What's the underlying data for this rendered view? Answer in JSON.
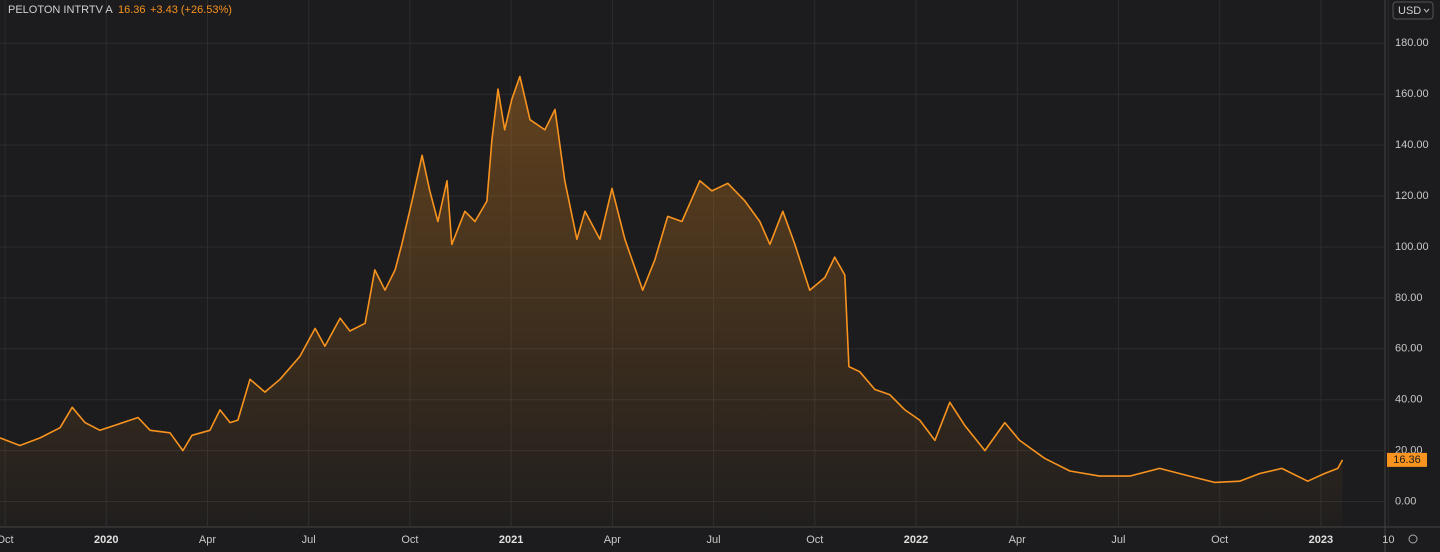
{
  "header": {
    "name": "PELOTON INTRTV A",
    "price": "16.36",
    "change": "+3.43 (+26.53%)",
    "currency": "USD"
  },
  "chart_data": {
    "type": "area",
    "color": "#f7931e",
    "grid": true,
    "x": [
      -0.15,
      0.44,
      1.04,
      1.63,
      1.99,
      2.37,
      2.81,
      3.26,
      3.94,
      4.3,
      4.89,
      5.27,
      5.54,
      6.07,
      6.37,
      6.67,
      6.9,
      7.26,
      7.7,
      8.15,
      8.74,
      9.19,
      9.48,
      9.93,
      10.22,
      10.67,
      10.96,
      11.26,
      11.56,
      11.76,
      12.06,
      12.36,
      12.59,
      12.83,
      13.1,
      13.24,
      13.63,
      13.93,
      14.28,
      14.43,
      14.61,
      14.81,
      15.02,
      15.26,
      15.56,
      16.0,
      16.3,
      16.59,
      16.95,
      17.19,
      17.63,
      17.99,
      18.37,
      18.9,
      19.26,
      19.64,
      20.06,
      20.59,
      20.95,
      21.42,
      21.93,
      22.37,
      22.67,
      23.05,
      23.41,
      23.85,
      24.3,
      24.59,
      24.89,
      25.01,
      25.33,
      25.78,
      26.22,
      26.67,
      27.11,
      27.56,
      28.0,
      28.44,
      29.04,
      29.63,
      30.07,
      30.81,
      31.56,
      32.44,
      33.33,
      34.22,
      35.11,
      35.85,
      36.59,
      37.19,
      37.84,
      38.61,
      39.11,
      39.5,
      39.64
    ],
    "values": [
      25,
      22,
      25,
      29,
      37,
      31,
      28,
      30,
      33,
      28,
      27,
      20,
      26,
      28,
      36,
      31,
      32,
      48,
      43,
      48,
      57,
      68,
      61,
      72,
      67,
      70,
      91,
      83,
      91,
      101,
      118,
      136,
      122,
      110,
      126,
      101,
      114,
      110,
      118,
      142,
      162,
      146,
      158,
      167,
      150,
      146,
      154,
      126,
      103,
      114,
      103,
      123,
      103,
      83,
      95,
      112,
      110,
      126,
      122,
      125,
      118,
      110,
      101,
      114,
      101,
      83,
      88,
      96,
      89,
      53,
      51,
      44,
      42,
      36,
      32,
      24,
      39,
      30,
      20,
      31,
      24,
      17,
      12,
      10,
      10,
      13,
      10,
      7.5,
      8,
      11,
      13,
      8,
      11,
      13,
      16.36
    ],
    "xlim": [
      -0.15,
      40.9
    ],
    "ylim": [
      -10,
      197
    ],
    "yticks": [
      {
        "value": 0,
        "label": "0.00"
      },
      {
        "value": 20,
        "label": "20.00"
      },
      {
        "value": 40,
        "label": "40.00"
      },
      {
        "value": 60,
        "label": "60.00"
      },
      {
        "value": 80,
        "label": "80.00"
      },
      {
        "value": 100,
        "label": "100.00"
      },
      {
        "value": 120,
        "label": "120.00"
      },
      {
        "value": 140,
        "label": "140.00"
      },
      {
        "value": 160,
        "label": "160.00"
      },
      {
        "value": 180,
        "label": "180.00"
      }
    ],
    "xticks": [
      {
        "value": 0,
        "label": "Oct"
      },
      {
        "value": 3,
        "label": "2020"
      },
      {
        "value": 6,
        "label": "Apr"
      },
      {
        "value": 9,
        "label": "Jul"
      },
      {
        "value": 12,
        "label": "Oct"
      },
      {
        "value": 15,
        "label": "2021"
      },
      {
        "value": 18,
        "label": "Apr"
      },
      {
        "value": 21,
        "label": "Jul"
      },
      {
        "value": 24,
        "label": "Oct"
      },
      {
        "value": 27,
        "label": "2022"
      },
      {
        "value": 30,
        "label": "Apr"
      },
      {
        "value": 33,
        "label": "Jul"
      },
      {
        "value": 36,
        "label": "Oct"
      },
      {
        "value": 39,
        "label": "2023"
      },
      {
        "value": 41,
        "label": "10"
      }
    ],
    "last_price": {
      "value": 16.36,
      "label": "16.36"
    }
  }
}
